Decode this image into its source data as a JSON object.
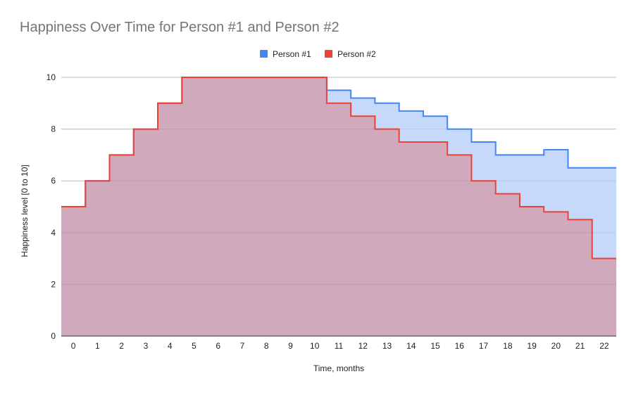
{
  "chart_data": {
    "type": "area",
    "subtype": "stepped",
    "title": "Happiness Over Time for Person #1 and Person #2",
    "xlabel": "Time, months",
    "ylabel": "Happiness level [0 to 10]",
    "x": [
      0,
      1,
      2,
      3,
      4,
      5,
      6,
      7,
      8,
      9,
      10,
      11,
      12,
      13,
      14,
      15,
      16,
      17,
      18,
      19,
      20,
      21,
      22
    ],
    "ylim": [
      0,
      10
    ],
    "yticks": [
      0,
      2,
      4,
      6,
      8,
      10
    ],
    "grid": true,
    "legend_position": "top-center",
    "series": [
      {
        "name": "Person #1",
        "color": "#4285f4",
        "fill": "#c6d9fa",
        "values": [
          5,
          6,
          7,
          8,
          9,
          10,
          10,
          10,
          10,
          10,
          10,
          9.5,
          9.2,
          9,
          8.7,
          8.5,
          8,
          7.5,
          7,
          7,
          7.2,
          6.5,
          6.5
        ]
      },
      {
        "name": "Person #2",
        "color": "#ea4335",
        "fill": "#d1a9bd",
        "values": [
          5,
          6,
          7,
          8,
          9,
          10,
          10,
          10,
          10,
          10,
          10,
          9,
          8.5,
          8,
          7.5,
          7.5,
          7,
          6,
          5.5,
          5,
          4.8,
          4.5,
          3
        ]
      }
    ]
  }
}
